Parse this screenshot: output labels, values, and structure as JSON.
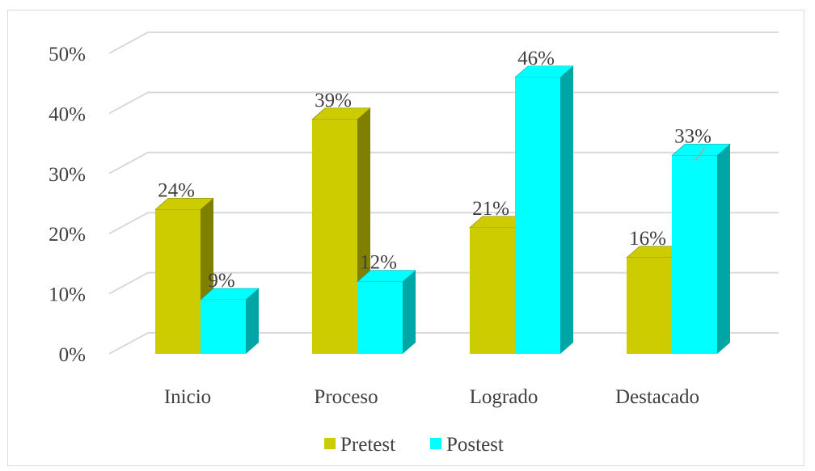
{
  "chart_data": {
    "type": "bar",
    "three_d": true,
    "categories": [
      "Inicio",
      "Proceso",
      "Logrado",
      "Destacado"
    ],
    "series": [
      {
        "name": "Pretest",
        "values": [
          24,
          39,
          21,
          16
        ],
        "labels": [
          "24%",
          "39%",
          "21%",
          "16%"
        ],
        "color": "#cccc00",
        "side_color": "#808000"
      },
      {
        "name": "Postest",
        "values": [
          9,
          12,
          46,
          33
        ],
        "labels": [
          "9%",
          "12%",
          "46%",
          "33%"
        ],
        "color": "#00ffff",
        "side_color": "#00a6a6"
      }
    ],
    "y_ticks": [
      "0%",
      "10%",
      "20%",
      "30%",
      "40%",
      "50%"
    ],
    "ylim": [
      0,
      50
    ],
    "grid": true,
    "legend_position": "bottom"
  }
}
